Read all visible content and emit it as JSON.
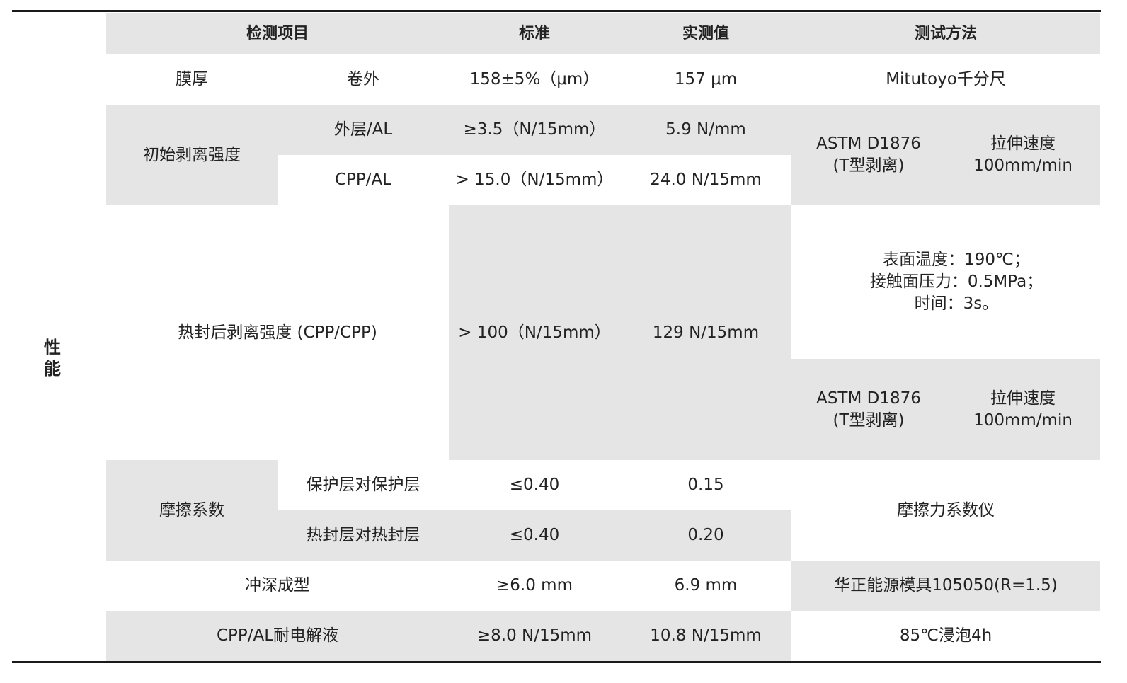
{
  "section_label": "性\n能",
  "header": {
    "item": "检测项目",
    "standard": "标准",
    "measured": "实测值",
    "method": "测试方法"
  },
  "rows": {
    "thickness": {
      "item": "膜厚",
      "sub": "卷外",
      "standard": "158±5%（μm）",
      "measured": "157 μm",
      "method": "Mitutoyo千分尺"
    },
    "initial_peel": {
      "item": "初始剥离强度",
      "sub1": "外层/AL",
      "standard1": "≥3.5（N/15mm）",
      "measured1": "5.9 N/mm",
      "sub2": "CPP/AL",
      "standard2": "> 15.0（N/15mm）",
      "measured2": "24.0 N/15mm",
      "method_a": "ASTM D1876\n(T型剥离)",
      "method_b": "拉伸速度\n100mm/min"
    },
    "heat_seal_peel": {
      "item": "热封后剥离强度 (CPP/CPP)",
      "standard": "> 100（N/15mm）",
      "measured": "129 N/15mm",
      "method_conditions": "表面温度：190℃；\n接触面压力：0.5MPa；\n时间：3s。",
      "method_a": "ASTM D1876\n(T型剥离)",
      "method_b": "拉伸速度\n100mm/min"
    },
    "friction": {
      "item": "摩擦系数",
      "sub1": "保护层对保护层",
      "standard1": "≤0.40",
      "measured1": "0.15",
      "sub2": "热封层对热封层",
      "standard2": "≤0.40",
      "measured2": "0.20",
      "method": "摩擦力系数仪"
    },
    "deep_draw": {
      "item": "冲深成型",
      "standard": "≥6.0 mm",
      "measured": "6.9 mm",
      "method": "华正能源模具105050(R=1.5)"
    },
    "electrolyte": {
      "item": "CPP/AL耐电解液",
      "standard": "≥8.0 N/15mm",
      "measured": "10.8 N/15mm",
      "method": "85℃浸泡4h"
    }
  },
  "colors": {
    "shade": "#e6e5e6",
    "rule": "#1a1a1a"
  }
}
